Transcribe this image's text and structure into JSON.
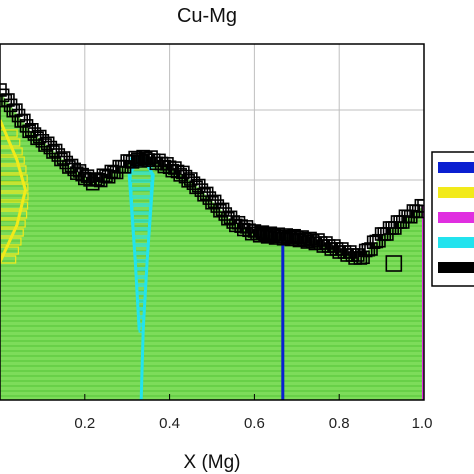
{
  "chart_data": {
    "type": "scatter",
    "title": "Cu-Mg",
    "xlabel": "X (Mg)",
    "ylabel": "",
    "xlim": [
      0.0,
      1.0
    ],
    "x_ticks": [
      "0.2",
      "0.4",
      "0.6",
      "0.8",
      "1.0"
    ],
    "y_ticks": [],
    "grid": true,
    "legend_placement": "right",
    "colors": {
      "liquid_fill": "#7ddc5a",
      "liquid_lines": "#54c436",
      "grid": "#bfbfbf",
      "frame": "#000000"
    },
    "series": [
      {
        "color": "#0a1fd1",
        "kind": "vertical-line",
        "x": 0.667
      },
      {
        "color": "#f2ea1a",
        "kind": "solid-solution-band",
        "x": [
          0.0,
          0.04,
          0.06,
          0.04,
          0.0
        ]
      },
      {
        "color": "#e02ee0",
        "kind": "vertical-line",
        "x": 1.0
      },
      {
        "color": "#22e3ee",
        "kind": "intermetallic-band",
        "x": [
          0.333,
          0.36,
          0.32,
          0.333
        ]
      },
      {
        "color": "#000000",
        "kind": "liquidus-points",
        "x": [
          0.0,
          0.03,
          0.07,
          0.12,
          0.17,
          0.22,
          0.27,
          0.31,
          0.35,
          0.39,
          0.43,
          0.47,
          0.51,
          0.55,
          0.6,
          0.65,
          0.7,
          0.75,
          0.8,
          0.85,
          0.9,
          0.95,
          1.0
        ]
      }
    ]
  }
}
